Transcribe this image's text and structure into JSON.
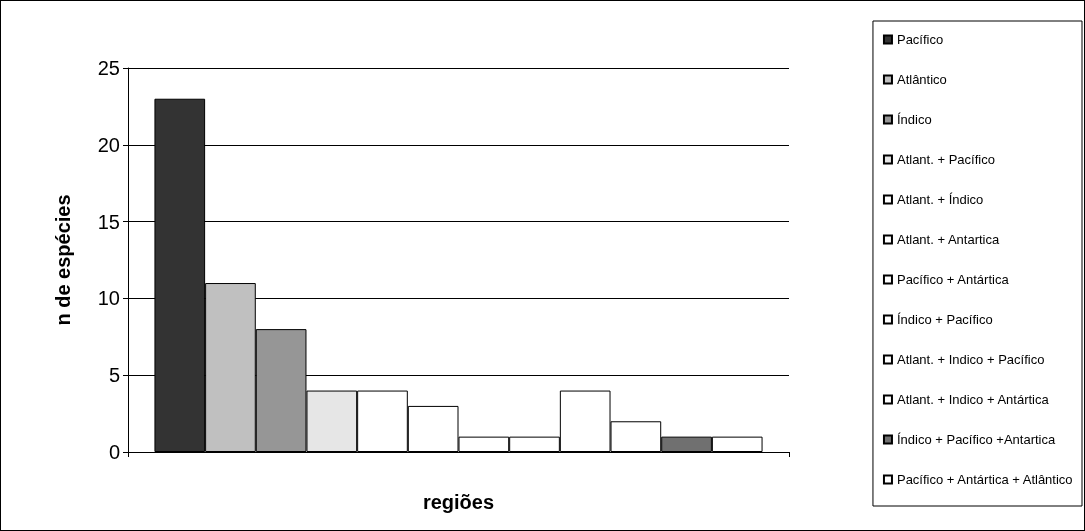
{
  "chart_data": {
    "type": "bar",
    "xlabel": "regiões",
    "ylabel": "n de espécies",
    "categories": [
      null
    ],
    "ylim": [
      0,
      25
    ],
    "yticks": [
      0,
      5,
      10,
      15,
      20,
      25
    ],
    "grid": "y",
    "legend": "right",
    "series": [
      {
        "name": "Pacífico",
        "color": "#333333",
        "values": [
          23
        ]
      },
      {
        "name": "Atlântico",
        "color": "#c0c0c0",
        "values": [
          11
        ]
      },
      {
        "name": "Índico",
        "color": "#969696",
        "values": [
          8
        ]
      },
      {
        "name": "Atlant. + Pacífico",
        "color": "#e6e6e6",
        "values": [
          4
        ]
      },
      {
        "name": "Atlant. + Índico",
        "color": "#ffffff",
        "values": [
          4
        ]
      },
      {
        "name": "Atlant. + Antartica",
        "color": "#ffffff",
        "values": [
          3
        ]
      },
      {
        "name": "Pacífico + Antártica",
        "color": "#ffffff",
        "values": [
          1
        ]
      },
      {
        "name": "Índico + Pacífico",
        "color": "#ffffff",
        "values": [
          1
        ]
      },
      {
        "name": "Atlant. + Indico + Pacífico",
        "color": "#ffffff",
        "values": [
          4
        ]
      },
      {
        "name": "Atlant. + Indico + Antártica",
        "color": "#ffffff",
        "values": [
          2
        ]
      },
      {
        "name": "Índico + Pacífico +Antartica",
        "color": "#707070",
        "values": [
          1
        ]
      },
      {
        "name": "Pacífico + Antártica + Atlântico",
        "color": "#ffffff",
        "values": [
          1
        ]
      }
    ]
  }
}
